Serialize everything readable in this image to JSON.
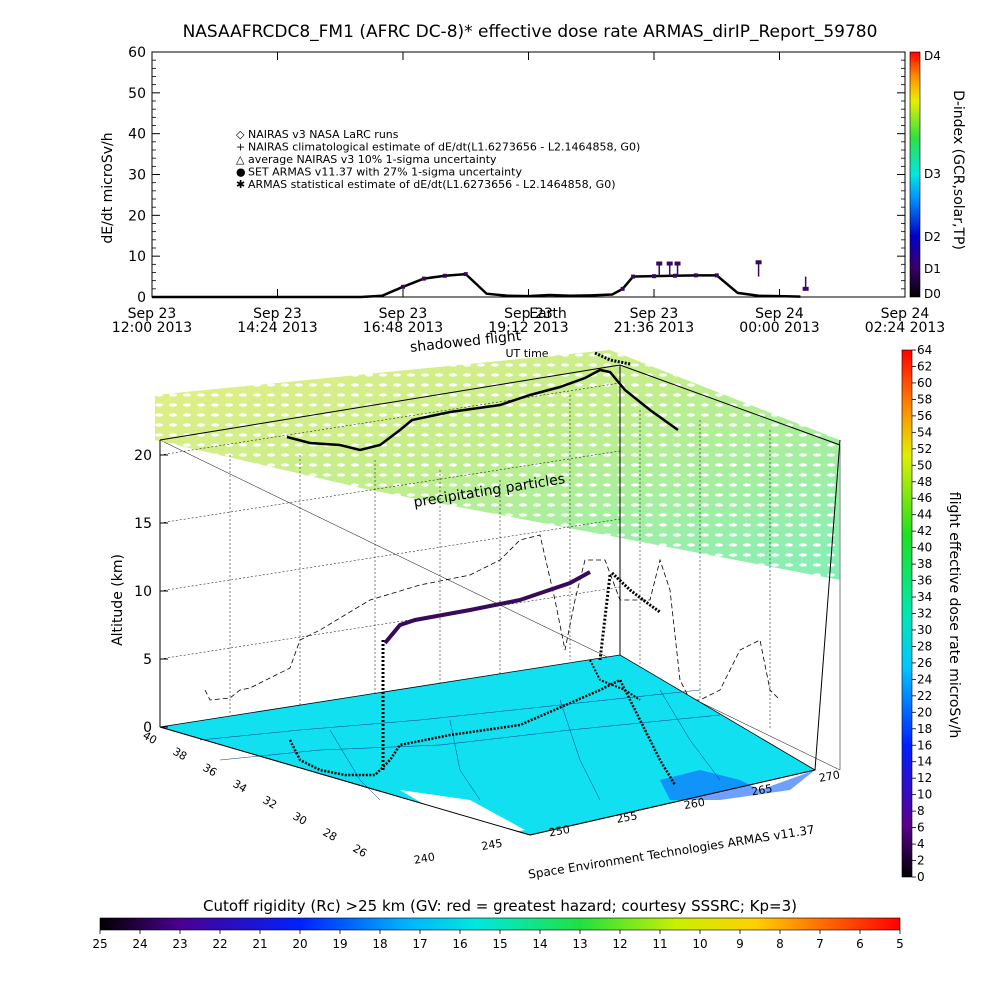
{
  "chart_data": [
    {
      "type": "line",
      "title": "NASAAFRCDC8_FM1 (AFRC DC-8)* effective dose rate ARMAS_dirIP_Report_59780",
      "ylabel": "dE/dt microSv/h",
      "xlabel": "UT time",
      "ylim": [
        0,
        60
      ],
      "yticks": [
        "0",
        "10",
        "20",
        "30",
        "40",
        "50",
        "60"
      ],
      "xticks": [
        {
          "line1": "Sep 23",
          "line2": "12:00 2013"
        },
        {
          "line1": "Sep 23",
          "line2": "14:24 2013"
        },
        {
          "line1": "Sep 23",
          "line2": "16:48 2013"
        },
        {
          "line1": "Sep 23",
          "line2": "19:12 2013"
        },
        {
          "line1": "Sep 23",
          "line2": "21:36 2013"
        },
        {
          "line1": "Sep 24",
          "line2": "00:00 2013"
        },
        {
          "line1": "Sep 24",
          "line2": "02:24 2013"
        }
      ],
      "legend": [
        "NAIRAS v3 NASA LaRC runs",
        "NAIRAS climatological estimate of dE/dt(L1.6273656 - L2.1464858, G0)",
        "average NAIRAS v3 10% 1-sigma uncertainty",
        "SET ARMAS v11.37 with 27% 1-sigma uncertainty",
        "ARMAS statistical estimate of dE/dt(L1.6273656 - L2.1464858, G0)"
      ],
      "legend_placement": "upper-left",
      "overlap_labels": [
        "Earth",
        "shadowed flight"
      ],
      "series_hours": [
        12.0,
        14.0,
        15.0,
        16.0,
        16.4,
        16.8,
        17.2,
        17.6,
        18.0,
        18.4,
        18.8,
        19.2,
        19.6,
        20.0,
        20.4,
        20.8,
        21.0,
        21.2,
        21.6,
        22.0,
        22.4,
        22.8,
        23.2,
        23.6,
        24.0,
        24.4
      ],
      "series_values": [
        0,
        0,
        0,
        0,
        0.3,
        2.5,
        4.5,
        5.2,
        5.6,
        0.8,
        0.3,
        0.2,
        0.5,
        0.3,
        0.4,
        0.6,
        2.0,
        5.0,
        5.1,
        5.2,
        5.3,
        5.3,
        1.0,
        0.3,
        0.2,
        0.1
      ],
      "spike_hours": [
        21.7,
        21.9,
        22.05,
        23.6,
        24.5
      ],
      "spike_values": [
        8.2,
        8.2,
        8.2,
        8.5,
        2.0
      ],
      "colorbar": {
        "label": "D-index (GCR,solar,TP)",
        "labels": [
          "D4",
          "D3",
          "D2",
          "D1",
          "D0"
        ]
      }
    },
    {
      "type": "scatter",
      "title": "",
      "zlabel": "Altitude (km)",
      "zticks": [
        "0",
        "5",
        "10",
        "15",
        "20"
      ],
      "lat_ticks": [
        "40",
        "38",
        "36",
        "34",
        "32",
        "30",
        "28",
        "26"
      ],
      "lon_ticks": [
        "240",
        "245",
        "250",
        "255",
        "260",
        "265",
        "270"
      ],
      "layer_label": "precipitating particles",
      "credit": "Space Environment Technologies ARMAS v11.37",
      "colorbar": {
        "label": "flight effective dose rate microSv/h",
        "ticks": [
          "0",
          "2",
          "4",
          "6",
          "8",
          "10",
          "12",
          "14",
          "16",
          "18",
          "20",
          "22",
          "24",
          "26",
          "28",
          "30",
          "32",
          "34",
          "36",
          "38",
          "40",
          "42",
          "44",
          "46",
          "48",
          "50",
          "52",
          "54",
          "56",
          "58",
          "60",
          "62",
          "64"
        ]
      }
    },
    {
      "type": "heatmap",
      "title": "Cutoff rigidity (Rc) >25 km (GV: red = greatest hazard; courtesy SSSRC; Kp=3)",
      "ticks": [
        "25",
        "24",
        "23",
        "22",
        "21",
        "20",
        "19",
        "18",
        "17",
        "16",
        "15",
        "14",
        "13",
        "12",
        "11",
        "10",
        "9",
        "8",
        "7",
        "6",
        "5"
      ]
    }
  ]
}
